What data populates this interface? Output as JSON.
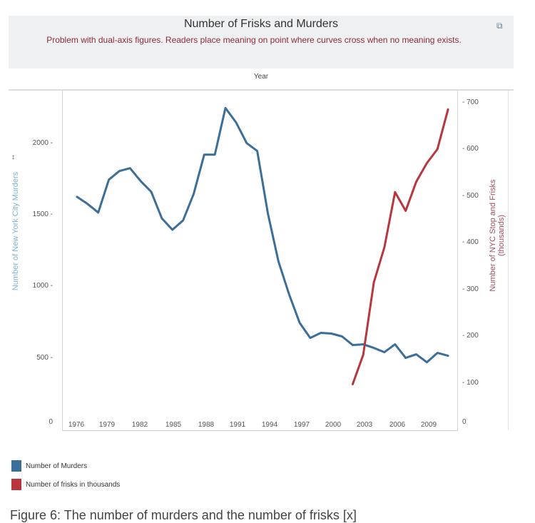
{
  "header": {
    "title": "Number of Frisks and Murders",
    "subtitle": "Problem with dual-axis figures. Readers place meaning on point where curves cross when no meaning exists.",
    "share_icon": "share-icon",
    "year_header": "Year"
  },
  "axes": {
    "left_label": "Number of New York City Murders",
    "right_label": "Number of NYC Stop and Frisks (thousands)",
    "left_ticks": [
      "0",
      "500",
      "1000",
      "1500",
      "2000"
    ],
    "right_ticks": [
      "0",
      "100",
      "200",
      "300",
      "400",
      "500",
      "600",
      "700"
    ],
    "x_ticks": [
      "1976",
      "1979",
      "1982",
      "1985",
      "1988",
      "1991",
      "1994",
      "1997",
      "2000",
      "2003",
      "2006",
      "2009"
    ],
    "sort_icon": "sort-icon"
  },
  "legend": {
    "items": [
      {
        "label": "Number of Murders",
        "color": "#3b6e99"
      },
      {
        "label": "Number of frisks in thousands",
        "color": "#b8373f"
      }
    ]
  },
  "caption": "Figure 6: The number of murders and the number of frisks [x]",
  "chart_data": {
    "type": "line",
    "title": "Number of Frisks and Murders",
    "subtitle": "Problem with dual-axis figures. Readers place meaning on point where curves cross when no meaning exists.",
    "xlabel": "Year",
    "ylabel": "Number of New York City Murders",
    "ylabel_right": "Number of NYC Stop and Frisks (thousands)",
    "ylim": [
      0,
      2300
    ],
    "ylim_right": [
      0,
      700
    ],
    "grid": false,
    "legend_position": "bottom",
    "series": [
      {
        "name": "Number of Murders",
        "axis": "left",
        "color": "#3b6e99",
        "x": [
          1976,
          1977,
          1978,
          1979,
          1980,
          1981,
          1982,
          1983,
          1984,
          1985,
          1986,
          1987,
          1988,
          1989,
          1990,
          1991,
          1992,
          1993,
          1994,
          1995,
          1996,
          1997,
          1998,
          1999,
          2000,
          2001,
          2002,
          2003,
          2004,
          2005,
          2006,
          2007,
          2008,
          2009,
          2010,
          2011
        ],
        "values": [
          1625,
          1575,
          1515,
          1745,
          1805,
          1825,
          1735,
          1660,
          1475,
          1395,
          1460,
          1645,
          1920,
          1920,
          2245,
          2145,
          2000,
          1945,
          1510,
          1175,
          945,
          745,
          640,
          675,
          670,
          650,
          590,
          595,
          570,
          540,
          595,
          500,
          525,
          470,
          535,
          515
        ]
      },
      {
        "name": "Number of frisks in thousands",
        "axis": "right",
        "color": "#b8373f",
        "x": [
          2002,
          2003,
          2004,
          2005,
          2006,
          2007,
          2008,
          2009,
          2010,
          2011
        ],
        "values": [
          97,
          160,
          315,
          390,
          508,
          468,
          530,
          570,
          600,
          685
        ]
      }
    ]
  }
}
